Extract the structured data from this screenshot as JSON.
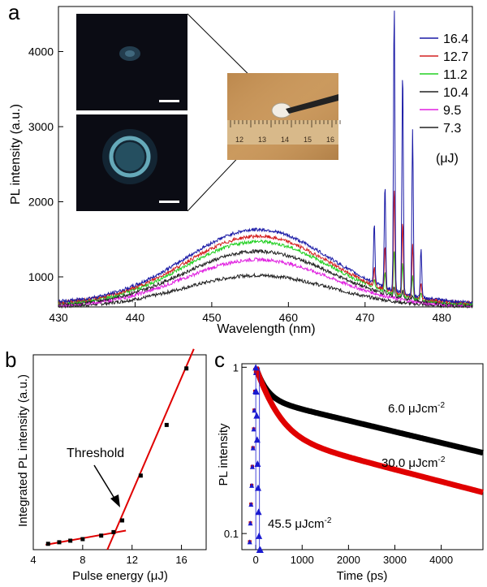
{
  "panels": [
    {
      "letter": "a",
      "chart_data": {
        "type": "line",
        "xlabel": "Wavelength (nm)",
        "ylabel": "PL intensity (a.u.)",
        "xlim": [
          430,
          484
        ],
        "ylim": [
          600,
          4600
        ],
        "x_ticks": [
          430,
          440,
          450,
          460,
          470,
          480
        ],
        "y_ticks": [
          1000,
          2000,
          3000,
          4000
        ],
        "legend_unit": "(μJ)",
        "legend_position": "top-right",
        "series": [
          {
            "name": "16.4",
            "color": "#1a1aa6",
            "baseline": 650,
            "broad_peak": 1630,
            "broad_center": 456,
            "broad_sigma": 9.5,
            "laser_peaks": [
              [
                471.2,
                800
              ],
              [
                472.6,
                1400
              ],
              [
                473.8,
                3800
              ],
              [
                474.9,
                3000
              ],
              [
                476.2,
                2200
              ],
              [
                477.3,
                650
              ]
            ]
          },
          {
            "name": "12.7",
            "color": "#d42020",
            "baseline": 640,
            "broad_peak": 1540,
            "broad_center": 456,
            "broad_sigma": 9.5,
            "laser_peaks": [
              [
                471.2,
                250
              ],
              [
                472.6,
                600
              ],
              [
                473.8,
                1400
              ],
              [
                474.9,
                1000
              ],
              [
                476.2,
                700
              ],
              [
                477.3,
                200
              ]
            ]
          },
          {
            "name": "11.2",
            "color": "#22d022",
            "baseline": 630,
            "broad_peak": 1470,
            "broad_center": 456,
            "broad_sigma": 9.5,
            "laser_peaks": [
              [
                471.2,
                100
              ],
              [
                472.6,
                250
              ],
              [
                473.8,
                600
              ],
              [
                474.9,
                450
              ],
              [
                476.2,
                300
              ],
              [
                477.3,
                80
              ]
            ]
          },
          {
            "name": "10.4",
            "color": "#222222",
            "baseline": 620,
            "broad_peak": 1340,
            "broad_center": 456,
            "broad_sigma": 9.5,
            "laser_peaks": [
              [
                472.6,
                60
              ],
              [
                473.8,
                120
              ],
              [
                474.9,
                100
              ],
              [
                476.2,
                60
              ]
            ]
          },
          {
            "name": "9.5",
            "color": "#e020e0",
            "baseline": 610,
            "broad_peak": 1230,
            "broad_center": 456,
            "broad_sigma": 9.5,
            "laser_peaks": []
          },
          {
            "name": "7.3",
            "color": "#222222",
            "baseline": 600,
            "broad_peak": 1020,
            "broad_center": 456,
            "broad_sigma": 9.5,
            "laser_peaks": []
          }
        ]
      },
      "inset_photo": {
        "ruler_labels": [
          "12",
          "13",
          "14",
          "15",
          "16"
        ]
      }
    },
    {
      "letter": "b",
      "chart_data": {
        "type": "scatter",
        "xlabel": "Pulse energy (μJ)",
        "ylabel": "Integrated PL intensity (a.u.)",
        "xlim": [
          4,
          18
        ],
        "ylim": [
          0,
          100
        ],
        "x_ticks": [
          4,
          8,
          12,
          16
        ],
        "annotation": "Threshold",
        "points": [
          [
            5.2,
            3.0
          ],
          [
            6.1,
            3.8
          ],
          [
            7.0,
            4.6
          ],
          [
            8.0,
            5.4
          ],
          [
            9.5,
            7.2
          ],
          [
            10.5,
            9.0
          ],
          [
            11.2,
            15.0
          ],
          [
            12.7,
            38.0
          ],
          [
            14.8,
            64.0
          ],
          [
            16.4,
            93.0
          ]
        ],
        "fit_low": [
          [
            5.0,
            2.5
          ],
          [
            11.5,
            9.8
          ]
        ],
        "fit_high": [
          [
            10.0,
            0.0
          ],
          [
            17.0,
            103.0
          ]
        ]
      }
    },
    {
      "letter": "c",
      "chart_data": {
        "type": "scatter",
        "xlabel": "Time (ps)",
        "ylabel": "PL intensity",
        "xlim": [
          -300,
          4900
        ],
        "ylim": [
          0.08,
          1.05
        ],
        "y_scale": "log",
        "x_ticks": [
          0,
          1000,
          2000,
          3000,
          4000
        ],
        "y_ticks": [
          0.1,
          1
        ],
        "series": [
          {
            "name": "6.0 μJcm⁻²",
            "label": "6.0 μJcm",
            "label_sup": "-2",
            "color": "#000000",
            "decay_fast": 0.35,
            "tau_fast": 200,
            "tau_slow": 6500
          },
          {
            "name": "30.0 μJcm⁻²",
            "label": "30.0 μJcm",
            "label_sup": "-2",
            "color": "#e00000",
            "decay_fast": 0.6,
            "tau_fast": 350,
            "tau_slow": 6000
          },
          {
            "name": "45.5 μJcm⁻²",
            "label": "45.5 μJcm",
            "label_sup": "-2",
            "color": "#1a1ad0",
            "decay_fast": 1.0,
            "tau_fast": 30,
            "tau_slow": 0
          }
        ]
      }
    }
  ]
}
